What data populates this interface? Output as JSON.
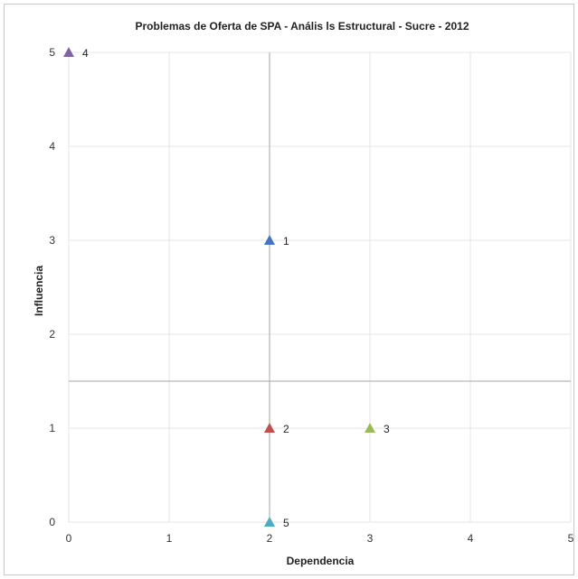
{
  "chart_data": {
    "type": "scatter",
    "title": "Problemas de Oferta de SPA - Anális ls Estructural -  Sucre - 2012",
    "xlabel": "Dependencia",
    "ylabel": "Influencia",
    "xlim": [
      0,
      5
    ],
    "ylim": [
      0,
      5
    ],
    "x_ticks": [
      "0",
      "1",
      "2",
      "3",
      "4",
      "5"
    ],
    "y_ticks": [
      "0",
      "1",
      "2",
      "3",
      "4",
      "5"
    ],
    "grid": true,
    "reference_lines": {
      "x": 2,
      "y": 1.5
    },
    "marker": "triangle",
    "points": [
      {
        "label": "1",
        "x": 2,
        "y": 3,
        "color": "#4472c4"
      },
      {
        "label": "2",
        "x": 2,
        "y": 1,
        "color": "#c0504d"
      },
      {
        "label": "3",
        "x": 3,
        "y": 1,
        "color": "#9bbb59"
      },
      {
        "label": "4",
        "x": 0,
        "y": 5,
        "color": "#8064a2"
      },
      {
        "label": "5",
        "x": 2,
        "y": 0,
        "color": "#4bacc6"
      }
    ]
  }
}
